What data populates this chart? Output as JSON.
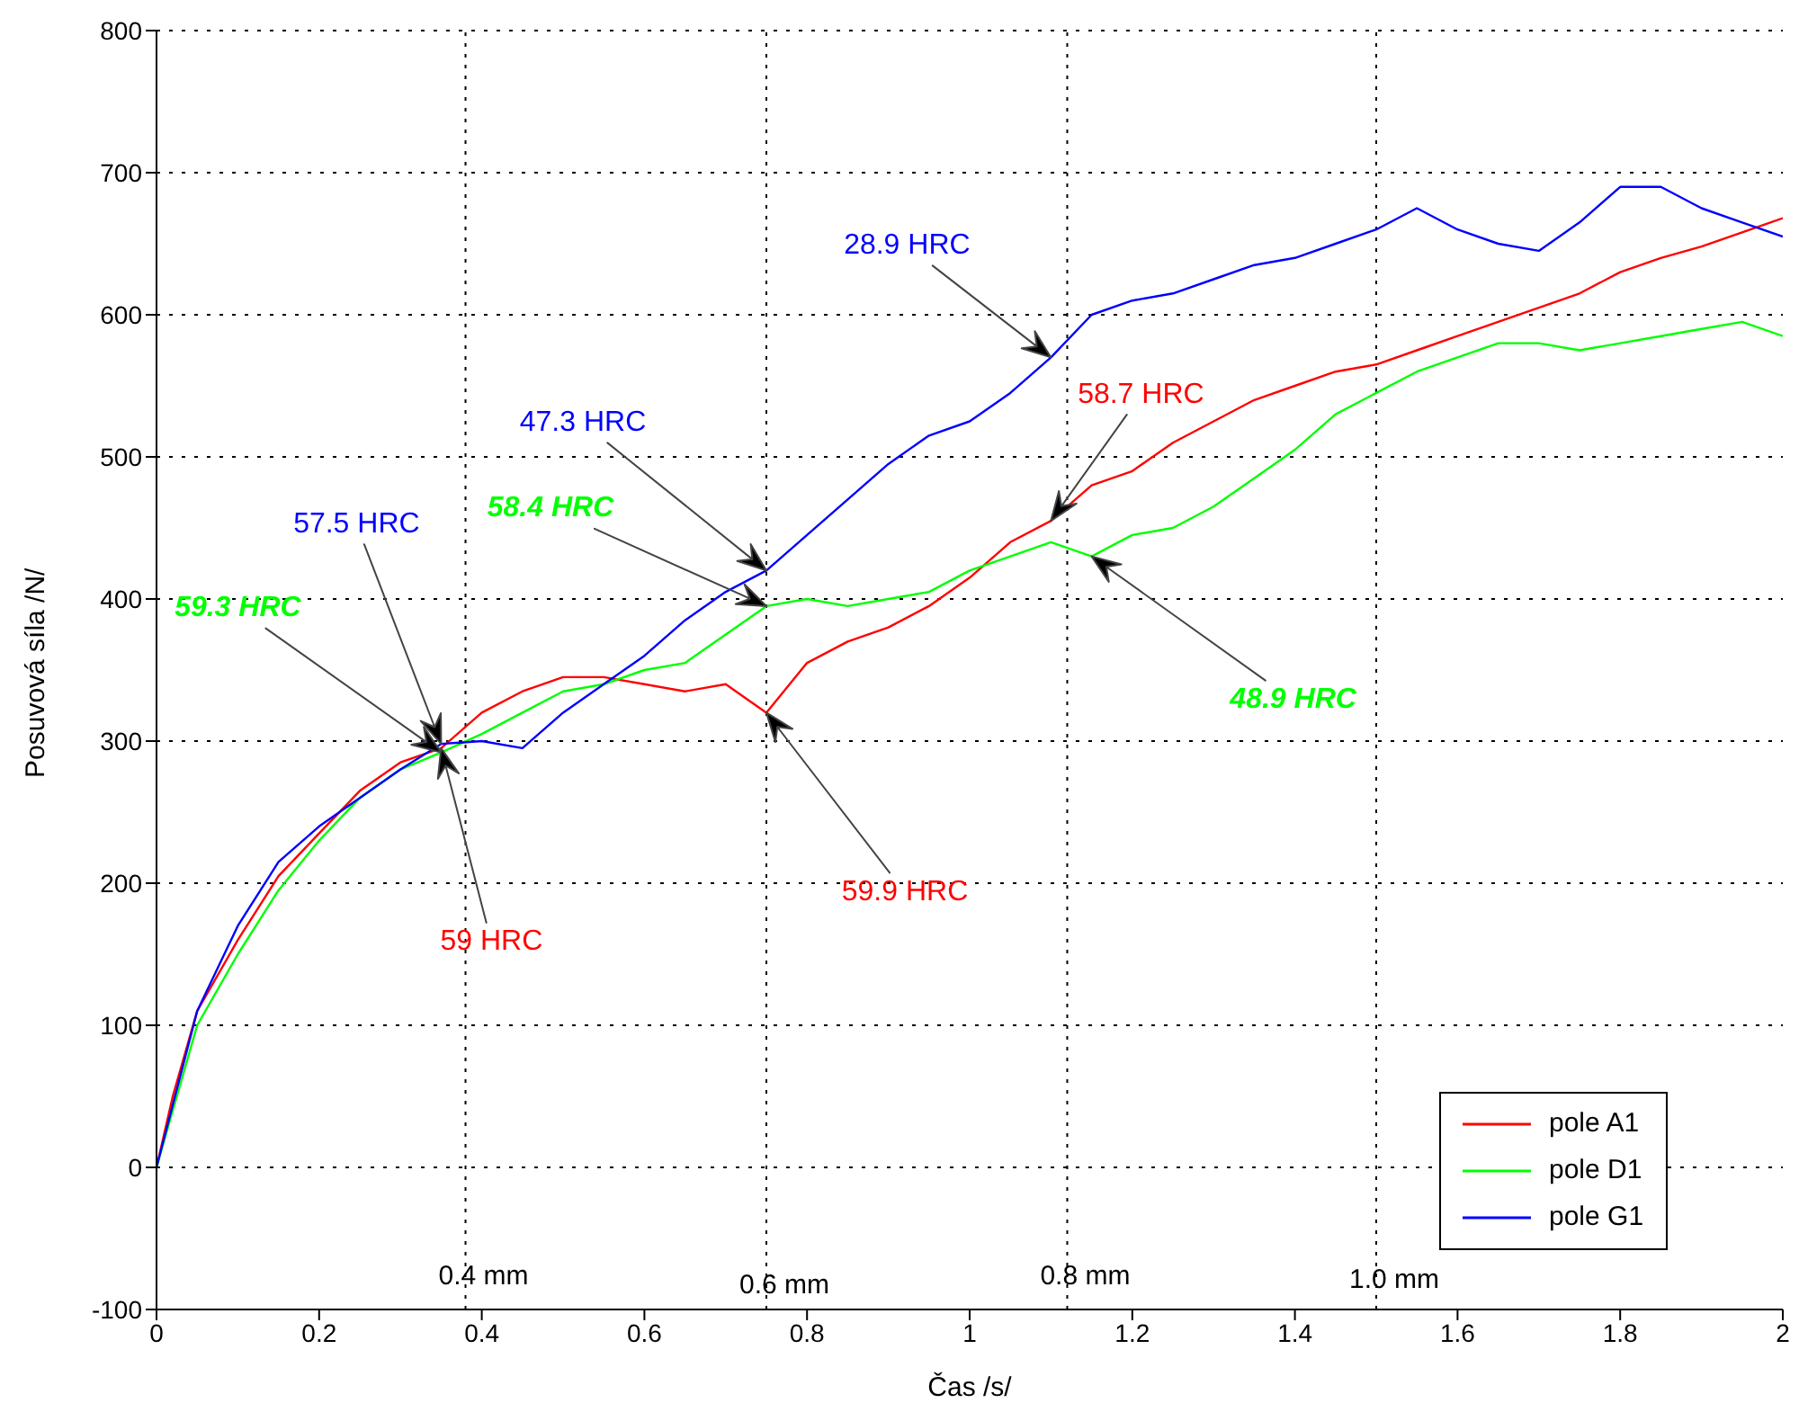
{
  "chart_data": {
    "type": "line",
    "xlabel": "Čas /s/",
    "ylabel": "Posuvová síla /N/",
    "xlim": [
      0,
      2
    ],
    "xticks": [
      0,
      0.2,
      0.4,
      0.6,
      0.8,
      1,
      1.2,
      1.4,
      1.6,
      1.8,
      2
    ],
    "ylim": [
      -100,
      800
    ],
    "yticks": [
      -100,
      0,
      100,
      200,
      300,
      400,
      500,
      600,
      700,
      800
    ],
    "grid": "y",
    "legend": "bottom right",
    "marker": "none",
    "line_style": "solid",
    "series": [
      {
        "name": "pole A1",
        "color": "#ff0000",
        "x": [
          0,
          0.02,
          0.05,
          0.1,
          0.15,
          0.2,
          0.25,
          0.3,
          0.35,
          0.4,
          0.45,
          0.5,
          0.55,
          0.6,
          0.65,
          0.7,
          0.75,
          0.8,
          0.85,
          0.9,
          0.95,
          1.0,
          1.05,
          1.1,
          1.15,
          1.2,
          1.25,
          1.3,
          1.35,
          1.4,
          1.45,
          1.5,
          1.55,
          1.6,
          1.65,
          1.7,
          1.75,
          1.8,
          1.85,
          1.9,
          1.95,
          2.0
        ],
        "values": [
          0,
          50,
          110,
          160,
          205,
          235,
          265,
          285,
          295,
          320,
          335,
          345,
          345,
          340,
          335,
          340,
          320,
          355,
          370,
          380,
          395,
          415,
          440,
          455,
          480,
          490,
          510,
          525,
          540,
          550,
          560,
          565,
          575,
          585,
          595,
          605,
          615,
          630,
          640,
          648,
          658,
          668
        ]
      },
      {
        "name": "pole D1",
        "color": "#00ff00",
        "x": [
          0,
          0.05,
          0.1,
          0.15,
          0.2,
          0.25,
          0.3,
          0.35,
          0.4,
          0.45,
          0.5,
          0.55,
          0.6,
          0.65,
          0.7,
          0.75,
          0.8,
          0.85,
          0.9,
          0.95,
          1.0,
          1.05,
          1.1,
          1.15,
          1.2,
          1.25,
          1.3,
          1.35,
          1.4,
          1.45,
          1.5,
          1.55,
          1.6,
          1.65,
          1.7,
          1.75,
          1.8,
          1.85,
          1.9,
          1.95,
          2.0
        ],
        "values": [
          0,
          100,
          150,
          195,
          230,
          260,
          280,
          292,
          305,
          320,
          335,
          340,
          350,
          355,
          375,
          395,
          400,
          395,
          400,
          405,
          420,
          430,
          440,
          430,
          445,
          450,
          465,
          485,
          505,
          530,
          545,
          560,
          570,
          580,
          580,
          575,
          580,
          585,
          590,
          595,
          585
        ]
      },
      {
        "name": "pole G1",
        "color": "#0000ff",
        "x": [
          0,
          0.05,
          0.1,
          0.15,
          0.2,
          0.25,
          0.3,
          0.35,
          0.4,
          0.45,
          0.5,
          0.55,
          0.6,
          0.65,
          0.7,
          0.75,
          0.8,
          0.85,
          0.9,
          0.95,
          1.0,
          1.05,
          1.1,
          1.15,
          1.2,
          1.25,
          1.3,
          1.35,
          1.4,
          1.45,
          1.5,
          1.55,
          1.6,
          1.65,
          1.7,
          1.75,
          1.8,
          1.85,
          1.9,
          1.95,
          2.0
        ],
        "values": [
          0,
          110,
          170,
          215,
          240,
          260,
          280,
          298,
          300,
          295,
          320,
          340,
          360,
          385,
          405,
          420,
          445,
          470,
          495,
          515,
          525,
          545,
          570,
          600,
          610,
          615,
          625,
          635,
          640,
          650,
          660,
          675,
          660,
          650,
          645,
          665,
          690,
          690,
          675,
          665,
          655
        ]
      }
    ],
    "ref_lines": [
      {
        "axis": "x",
        "value": 0.38,
        "label": "0.4 mm",
        "color": "#000000",
        "line_style": "dotted"
      },
      {
        "axis": "x",
        "value": 0.75,
        "label": "0.6 mm",
        "color": "#000000",
        "line_style": "dotted"
      },
      {
        "axis": "x",
        "value": 1.12,
        "label": "0.8 mm",
        "color": "#000000",
        "line_style": "dotted"
      },
      {
        "axis": "x",
        "value": 1.5,
        "label": "1.0 mm",
        "color": "#000000",
        "line_style": "dotted"
      }
    ],
    "annotations": [
      "59.3 HRC",
      "57.5 HRC",
      "59 HRC",
      "47.3 HRC",
      "58.4 HRC",
      "59.9 HRC",
      "28.9 HRC",
      "58.7 HRC",
      "48.9 HRC"
    ]
  }
}
